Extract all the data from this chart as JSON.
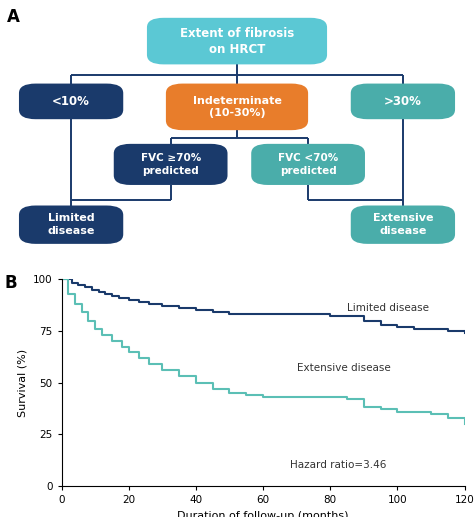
{
  "panel_a_label": "A",
  "panel_b_label": "B",
  "box_top": {
    "text": "Extent of fibrosis\non HRCT",
    "color": "#5bc8d4",
    "text_color": "#ffffff"
  },
  "box_left": {
    "text": "<10%",
    "color": "#1a3a6b",
    "text_color": "#ffffff"
  },
  "box_mid": {
    "text": "Indeterminate\n(10-30%)",
    "color": "#e87d2b",
    "text_color": "#ffffff"
  },
  "box_right": {
    "text": ">30%",
    "color": "#4aadaa",
    "text_color": "#ffffff"
  },
  "box_fvc_ge": {
    "text": "FVC ≥70%\npredicted",
    "color": "#1a3a6b",
    "text_color": "#ffffff"
  },
  "box_fvc_lt": {
    "text": "FVC <70%\npredicted",
    "color": "#4aadaa",
    "text_color": "#ffffff"
  },
  "box_limited": {
    "text": "Limited\ndisease",
    "color": "#1a3a6b",
    "text_color": "#ffffff"
  },
  "box_extensive": {
    "text": "Extensive\ndisease",
    "color": "#4aadaa",
    "text_color": "#ffffff"
  },
  "line_color": "#1a3a6b",
  "limited_x": [
    0,
    3,
    5,
    7,
    9,
    11,
    13,
    15,
    17,
    20,
    23,
    26,
    30,
    35,
    40,
    45,
    50,
    55,
    60,
    65,
    70,
    75,
    80,
    85,
    90,
    95,
    100,
    105,
    110,
    115,
    120
  ],
  "limited_y": [
    100,
    98,
    97,
    96,
    95,
    94,
    93,
    92,
    91,
    90,
    89,
    88,
    87,
    86,
    85,
    84,
    83,
    83,
    83,
    83,
    83,
    83,
    82,
    82,
    80,
    78,
    77,
    76,
    76,
    75,
    74
  ],
  "extensive_x": [
    0,
    2,
    4,
    6,
    8,
    10,
    12,
    15,
    18,
    20,
    23,
    26,
    30,
    35,
    40,
    45,
    50,
    55,
    60,
    65,
    70,
    75,
    80,
    85,
    90,
    95,
    100,
    105,
    110,
    115,
    120
  ],
  "extensive_y": [
    100,
    93,
    88,
    84,
    80,
    76,
    73,
    70,
    67,
    65,
    62,
    59,
    56,
    53,
    50,
    47,
    45,
    44,
    43,
    43,
    43,
    43,
    43,
    42,
    38,
    37,
    36,
    36,
    35,
    33,
    30
  ],
  "limited_color": "#1a3a6b",
  "extensive_color": "#5bbfb5",
  "xlabel": "Duration of follow-up (months)",
  "ylabel": "Survival (%)",
  "xlim": [
    0,
    120
  ],
  "ylim": [
    0,
    100
  ],
  "xticks": [
    0,
    20,
    40,
    60,
    80,
    100,
    120
  ],
  "yticks": [
    0,
    25,
    50,
    75,
    100
  ],
  "hazard_text": "Hazard ratio=3.46",
  "limited_label": "Limited disease",
  "extensive_label": "Extensive disease"
}
